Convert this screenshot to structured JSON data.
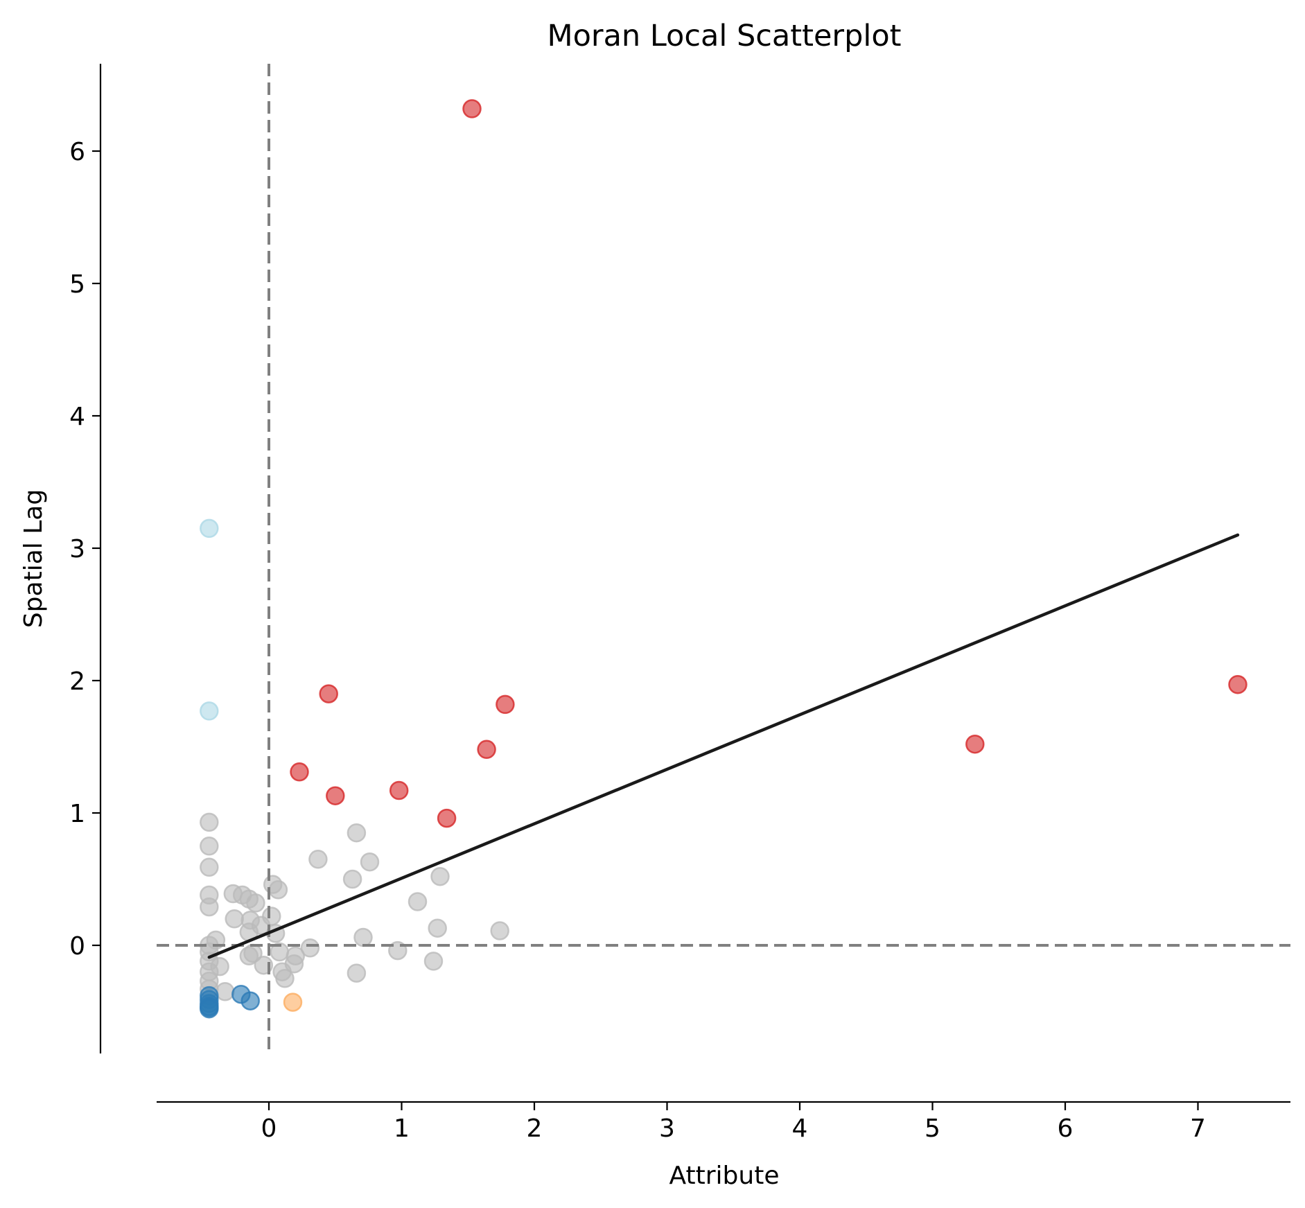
{
  "chart_data": {
    "type": "scatter",
    "title": "Moran Local Scatterplot",
    "xlabel": "Attribute",
    "ylabel": "Spatial Lag",
    "xlim": [
      -0.85,
      7.7
    ],
    "ylim": [
      -0.8,
      6.65
    ],
    "xticks": [
      0,
      1,
      2,
      3,
      4,
      5,
      6,
      7
    ],
    "yticks": [
      0,
      1,
      2,
      3,
      4,
      5,
      6
    ],
    "grid": false,
    "legend": "none",
    "reference_lines": {
      "x": 0,
      "y": 0,
      "style": "dashed",
      "color": "#808080"
    },
    "fit_line": {
      "x": [
        -0.45,
        7.3
      ],
      "y": [
        -0.09,
        3.1
      ],
      "color": "#1a1a1a"
    },
    "series": [
      {
        "quadrant": "HH",
        "color": "#d62728",
        "alpha": 0.6,
        "points": [
          [
            1.53,
            6.32
          ],
          [
            7.3,
            1.97
          ],
          [
            5.32,
            1.52
          ],
          [
            0.45,
            1.9
          ],
          [
            1.78,
            1.82
          ],
          [
            1.64,
            1.48
          ],
          [
            0.23,
            1.31
          ],
          [
            0.5,
            1.13
          ],
          [
            0.98,
            1.17
          ],
          [
            1.34,
            0.96
          ]
        ]
      },
      {
        "quadrant": "LH",
        "color": "#add8e6",
        "alpha": 0.6,
        "points": [
          [
            -0.45,
            3.15
          ],
          [
            -0.45,
            1.77
          ]
        ]
      },
      {
        "quadrant": "HL",
        "color": "#fdae61",
        "alpha": 0.6,
        "points": [
          [
            0.18,
            -0.43
          ]
        ]
      },
      {
        "quadrant": "LL",
        "color": "#2c7bb6",
        "alpha": 0.6,
        "points": [
          [
            -0.45,
            -0.38
          ],
          [
            -0.45,
            -0.41
          ],
          [
            -0.45,
            -0.44
          ],
          [
            -0.45,
            -0.46
          ],
          [
            -0.45,
            -0.47
          ],
          [
            -0.45,
            -0.48
          ],
          [
            -0.21,
            -0.37
          ],
          [
            -0.14,
            -0.42
          ]
        ]
      },
      {
        "quadrant": "ns",
        "color": "#bababa",
        "alpha": 0.6,
        "points": [
          [
            -0.45,
            0.93
          ],
          [
            -0.45,
            0.75
          ],
          [
            -0.45,
            0.59
          ],
          [
            -0.45,
            0.38
          ],
          [
            -0.45,
            0.29
          ],
          [
            -0.45,
            0.0
          ],
          [
            -0.45,
            -0.05
          ],
          [
            -0.45,
            -0.12
          ],
          [
            -0.45,
            -0.2
          ],
          [
            -0.45,
            -0.27
          ],
          [
            -0.45,
            -0.33
          ],
          [
            -0.4,
            0.04
          ],
          [
            -0.37,
            -0.16
          ],
          [
            -0.33,
            -0.35
          ],
          [
            -0.27,
            0.39
          ],
          [
            -0.26,
            0.2
          ],
          [
            -0.2,
            0.38
          ],
          [
            -0.15,
            0.35
          ],
          [
            -0.14,
            0.19
          ],
          [
            -0.15,
            0.1
          ],
          [
            -0.15,
            -0.08
          ],
          [
            -0.12,
            -0.06
          ],
          [
            -0.1,
            0.32
          ],
          [
            -0.06,
            0.15
          ],
          [
            -0.04,
            -0.15
          ],
          [
            0.02,
            0.22
          ],
          [
            0.03,
            0.46
          ],
          [
            0.07,
            0.42
          ],
          [
            0.05,
            0.09
          ],
          [
            0.08,
            -0.05
          ],
          [
            0.1,
            -0.2
          ],
          [
            0.12,
            -0.25
          ],
          [
            0.2,
            -0.08
          ],
          [
            0.19,
            -0.14
          ],
          [
            0.31,
            -0.02
          ],
          [
            0.37,
            0.65
          ],
          [
            0.63,
            0.5
          ],
          [
            0.66,
            0.85
          ],
          [
            0.66,
            -0.21
          ],
          [
            0.71,
            0.06
          ],
          [
            0.76,
            0.63
          ],
          [
            0.97,
            -0.04
          ],
          [
            1.12,
            0.33
          ],
          [
            1.24,
            -0.12
          ],
          [
            1.27,
            0.13
          ],
          [
            1.29,
            0.52
          ],
          [
            1.74,
            0.11
          ]
        ]
      }
    ]
  }
}
